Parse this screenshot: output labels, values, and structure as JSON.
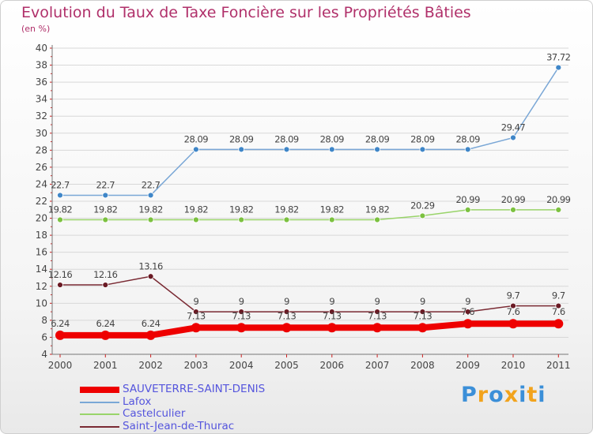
{
  "title": "Evolution du Taux de Taxe Foncière sur les Propriétés Bâties",
  "unit_label": "(en %)",
  "brand": {
    "text": "Proxiti",
    "colors": [
      "#3b8fd8",
      "#f2a31c",
      "#3b8fd8",
      "#f2a31c",
      "#3b8fd8",
      "#f2a31c",
      "#3b8fd8"
    ]
  },
  "chart_data": {
    "type": "line",
    "title": "Evolution du Taux de Taxe Foncière sur les Propriétés Bâties",
    "ylabel": "(en %)",
    "xlabel": "",
    "ylim": [
      4,
      40
    ],
    "ytick_step": 2,
    "grid": true,
    "categories": [
      "2000",
      "2001",
      "2002",
      "2003",
      "2004",
      "2005",
      "2006",
      "2007",
      "2008",
      "2009",
      "2010",
      "2011"
    ],
    "series": [
      {
        "name": "SAUVETERRE-SAINT-DENIS",
        "color": "#ee0000",
        "point_color": "#ee0000",
        "thick": true,
        "values": [
          6.24,
          6.24,
          6.24,
          7.13,
          7.13,
          7.13,
          7.13,
          7.13,
          7.13,
          7.6,
          7.6,
          7.6
        ],
        "labels": [
          "6.24",
          "6.24",
          "6.24",
          "7.13",
          "7.13",
          "7.13",
          "7.13",
          "7.13",
          "7.13",
          "7.6",
          "7.6",
          "7.6"
        ]
      },
      {
        "name": "Lafox",
        "color": "#7aa7d6",
        "point_color": "#3f86c8",
        "thick": false,
        "values": [
          22.7,
          22.7,
          22.7,
          28.09,
          28.09,
          28.09,
          28.09,
          28.09,
          28.09,
          28.09,
          29.47,
          37.72
        ],
        "labels": [
          "22.7",
          "22.7",
          "22.7",
          "28.09",
          "28.09",
          "28.09",
          "28.09",
          "28.09",
          "28.09",
          "28.09",
          "29.47",
          "37.72"
        ]
      },
      {
        "name": "Castelculier",
        "color": "#99d46a",
        "point_color": "#7cc140",
        "thick": false,
        "values": [
          19.82,
          19.82,
          19.82,
          19.82,
          19.82,
          19.82,
          19.82,
          19.82,
          20.29,
          20.99,
          20.99,
          20.99
        ],
        "labels": [
          "19.82",
          "19.82",
          "19.82",
          "19.82",
          "19.82",
          "19.82",
          "19.82",
          "19.82",
          "20.29",
          "20.99",
          "20.99",
          "20.99"
        ]
      },
      {
        "name": "Saint-Jean-de-Thurac",
        "color": "#7a2a33",
        "point_color": "#6a1a24",
        "thick": false,
        "values": [
          12.16,
          12.16,
          13.16,
          9,
          9,
          9,
          9,
          9,
          9,
          9,
          9.7,
          9.7
        ],
        "labels": [
          "12.16",
          "12.16",
          "13.16",
          "9",
          "9",
          "9",
          "9",
          "9",
          "9",
          "9",
          "9.7",
          "9.7"
        ]
      }
    ]
  }
}
